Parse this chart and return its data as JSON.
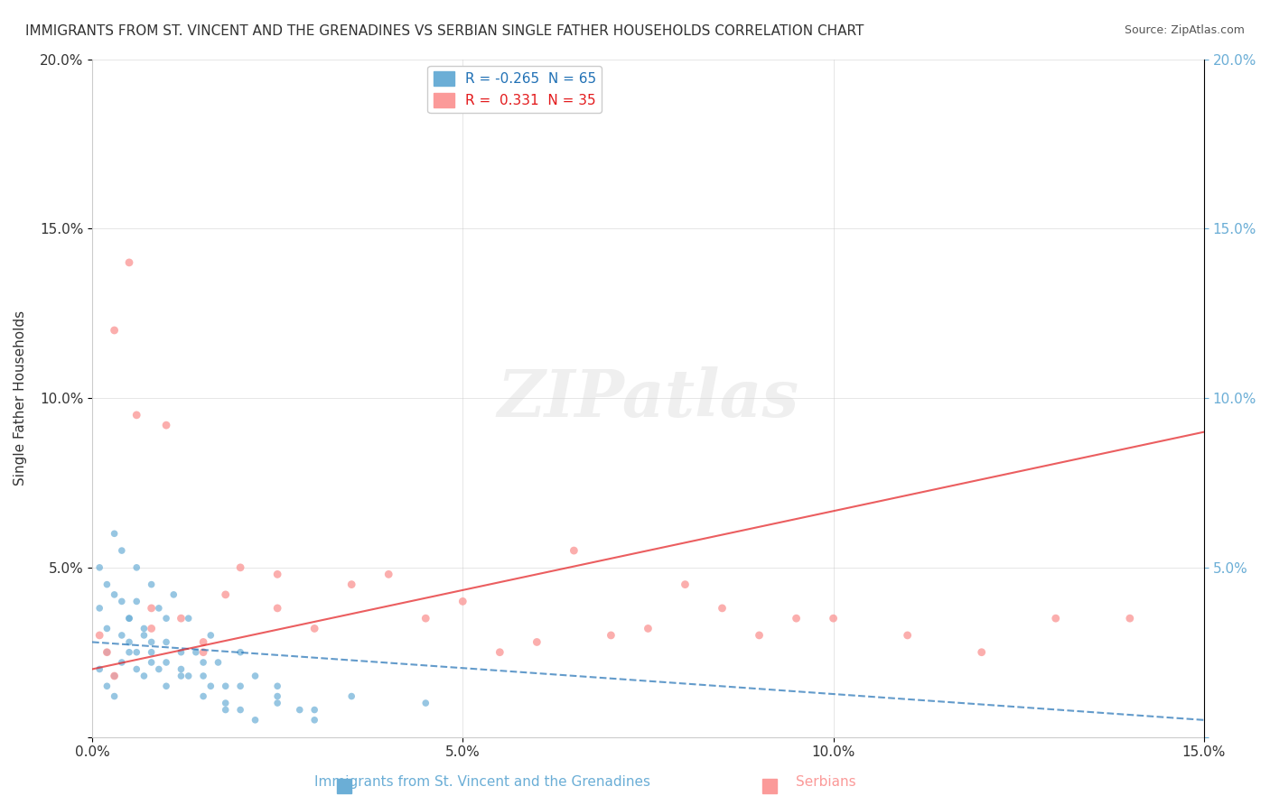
{
  "title": "IMMIGRANTS FROM ST. VINCENT AND THE GRENADINES VS SERBIAN SINGLE FATHER HOUSEHOLDS CORRELATION CHART",
  "source": "Source: ZipAtlas.com",
  "xlabel_blue": "Immigrants from St. Vincent and the Grenadines",
  "xlabel_pink": "Serbians",
  "ylabel": "Single Father Households",
  "xlim": [
    0.0,
    0.15
  ],
  "ylim": [
    0.0,
    0.2
  ],
  "xticks": [
    0.0,
    0.05,
    0.1,
    0.15
  ],
  "yticks": [
    0.0,
    0.05,
    0.1,
    0.15,
    0.2
  ],
  "xtick_labels": [
    "0.0%",
    "5.0%",
    "10.0%",
    "15.0%"
  ],
  "ytick_labels_left": [
    "",
    "5.0%",
    "10.0%",
    "15.0%",
    "20.0%"
  ],
  "ytick_labels_right": [
    "",
    "5.0%",
    "10.0%",
    "15.0%",
    "20.0%"
  ],
  "R_blue": -0.265,
  "N_blue": 65,
  "R_pink": 0.331,
  "N_pink": 35,
  "blue_color": "#6baed6",
  "pink_color": "#fb9a99",
  "blue_line_color": "#2171b5",
  "pink_line_color": "#e31a1c",
  "watermark": "ZIPatlas",
  "blue_scatter_x": [
    0.001,
    0.002,
    0.002,
    0.003,
    0.003,
    0.004,
    0.004,
    0.005,
    0.005,
    0.006,
    0.006,
    0.007,
    0.007,
    0.008,
    0.008,
    0.009,
    0.01,
    0.01,
    0.011,
    0.012,
    0.013,
    0.014,
    0.015,
    0.016,
    0.017,
    0.018,
    0.02,
    0.022,
    0.025,
    0.028,
    0.001,
    0.002,
    0.003,
    0.004,
    0.004,
    0.005,
    0.006,
    0.007,
    0.008,
    0.009,
    0.01,
    0.012,
    0.013,
    0.015,
    0.016,
    0.018,
    0.02,
    0.022,
    0.025,
    0.03,
    0.001,
    0.002,
    0.003,
    0.005,
    0.006,
    0.008,
    0.01,
    0.012,
    0.015,
    0.018,
    0.02,
    0.025,
    0.03,
    0.035,
    0.045
  ],
  "blue_scatter_y": [
    0.02,
    0.015,
    0.025,
    0.018,
    0.012,
    0.03,
    0.022,
    0.035,
    0.028,
    0.04,
    0.025,
    0.032,
    0.018,
    0.045,
    0.022,
    0.038,
    0.028,
    0.015,
    0.042,
    0.02,
    0.035,
    0.025,
    0.018,
    0.03,
    0.022,
    0.015,
    0.025,
    0.018,
    0.012,
    0.008,
    0.05,
    0.045,
    0.06,
    0.055,
    0.04,
    0.035,
    0.05,
    0.03,
    0.025,
    0.02,
    0.035,
    0.025,
    0.018,
    0.022,
    0.015,
    0.01,
    0.008,
    0.005,
    0.015,
    0.005,
    0.038,
    0.032,
    0.042,
    0.025,
    0.02,
    0.028,
    0.022,
    0.018,
    0.012,
    0.008,
    0.015,
    0.01,
    0.008,
    0.012,
    0.01
  ],
  "pink_scatter_x": [
    0.001,
    0.002,
    0.003,
    0.005,
    0.006,
    0.008,
    0.01,
    0.012,
    0.015,
    0.018,
    0.02,
    0.025,
    0.03,
    0.035,
    0.04,
    0.045,
    0.05,
    0.055,
    0.06,
    0.065,
    0.07,
    0.075,
    0.08,
    0.085,
    0.09,
    0.095,
    0.1,
    0.11,
    0.12,
    0.13,
    0.14,
    0.003,
    0.008,
    0.015,
    0.025
  ],
  "pink_scatter_y": [
    0.03,
    0.025,
    0.12,
    0.14,
    0.095,
    0.038,
    0.092,
    0.035,
    0.028,
    0.042,
    0.05,
    0.038,
    0.032,
    0.045,
    0.048,
    0.035,
    0.04,
    0.025,
    0.028,
    0.055,
    0.03,
    0.032,
    0.045,
    0.038,
    0.03,
    0.035,
    0.035,
    0.03,
    0.025,
    0.035,
    0.035,
    0.018,
    0.032,
    0.025,
    0.048
  ]
}
